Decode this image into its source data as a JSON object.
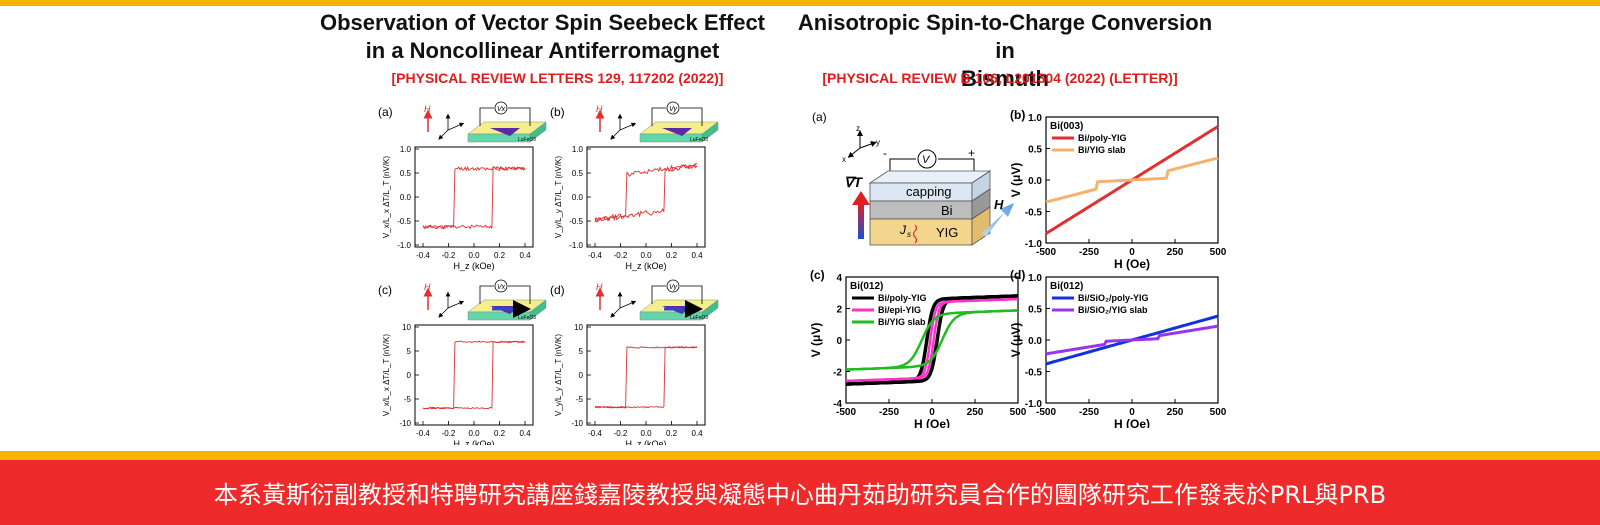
{
  "left": {
    "title_line1": "Observation of Vector Spin Seebeck Effect",
    "title_line2": "in a Noncollinear Antiferromagnet",
    "ref": "[PHYSICAL REVIEW LETTERS 129, 117202 (2022)]",
    "panels": [
      {
        "label": "(a)",
        "ylabel": "V_x/L_x ΔT/L_T (nV/K)",
        "xlabel": "H_z (kOe)",
        "yticks": [
          "1.0",
          "0.5",
          "0.0",
          "-0.5",
          "-1.0"
        ],
        "xticks": [
          "-0.4",
          "-0.2",
          "0.0",
          "0.2",
          "0.4"
        ],
        "voltage": "Vx"
      },
      {
        "label": "(b)",
        "ylabel": "V_y/L_y ΔT/L_T (nV/K)",
        "xlabel": "H_z (kOe)",
        "yticks": [
          "1.0",
          "0.5",
          "0.0",
          "-0.5",
          "-1.0"
        ],
        "xticks": [
          "-0.4",
          "-0.2",
          "0.0",
          "0.2",
          "0.4"
        ],
        "voltage": "Vy"
      },
      {
        "label": "(c)",
        "ylabel": "V_x/L_x ΔT/L_T (nV/K)",
        "xlabel": "H_z (kOe)",
        "yticks": [
          "10",
          "5",
          "0",
          "-5",
          "-10"
        ],
        "xticks": [
          "-0.4",
          "-0.2",
          "0.0",
          "0.2",
          "0.4"
        ],
        "voltage": "Vx"
      },
      {
        "label": "(d)",
        "ylabel": "V_y/L_y ΔT/L_T (nV/K)",
        "xlabel": "H_z (kOe)",
        "yticks": [
          "10",
          "5",
          "0",
          "-5",
          "-10"
        ],
        "xticks": [
          "-0.4",
          "-0.2",
          "0.0",
          "0.2",
          "0.4"
        ],
        "voltage": "Vy"
      }
    ],
    "sample": "LuFeO3",
    "h_label": "H"
  },
  "right": {
    "title_line1": "Anisotropic Spin-to-Charge Conversion in",
    "title_line2": "Bismuth",
    "ref": "[PHYSICAL REVIEW B 106, L201304 (2022) (LETTER)]",
    "schematic": {
      "label": "(a)",
      "capping": "capping",
      "bi": "Bi",
      "yig": "YIG",
      "js": "J",
      "grad": "∇T",
      "h": "H",
      "v": "V",
      "minus": "-",
      "plus": "+"
    },
    "panel_b": {
      "label": "(b)",
      "title": "Bi(003)",
      "legend": [
        "Bi/poly-YIG",
        "Bi/YIG slab"
      ],
      "ylabel": "V (μV)",
      "xlabel": "H (Oe)",
      "yticks": [
        "1.0",
        "0.5",
        "0.0",
        "-0.5",
        "-1.0"
      ],
      "xticks": [
        "-500",
        "-250",
        "0",
        "250",
        "500"
      ]
    },
    "panel_c": {
      "label": "(c)",
      "title": "Bi(012)",
      "legend": [
        "Bi/poly-YIG",
        "Bi/epi-YIG",
        "Bi/YIG slab"
      ],
      "ylabel": "V (μV)",
      "xlabel": "H (Oe)",
      "yticks": [
        "4",
        "2",
        "0",
        "-2",
        "-4"
      ],
      "xticks": [
        "-500",
        "-250",
        "0",
        "250",
        "500"
      ]
    },
    "panel_d": {
      "label": "(d)",
      "title": "Bi(012)",
      "legend": [
        "Bi/SiO₂/poly-YIG",
        "Bi/SiO₂/YIG slab"
      ],
      "ylabel": "V (μV)",
      "xlabel": "H (Oe)",
      "yticks": [
        "1.0",
        "0.5",
        "0.0",
        "-0.5",
        "-1.0"
      ],
      "xticks": [
        "-500",
        "-250",
        "0",
        "250",
        "500"
      ]
    }
  },
  "banner": "本系黃斯衍副教授和特聘研究講座錢嘉陵教授與凝態中心曲丹茹助研究員合作的團隊研究工作發表於PRL與PRB",
  "colors": {
    "accent_yellow": "#F7B500",
    "banner_red": "#EE2A2A",
    "ref_red": "#E01B1B",
    "curve_red": "#E03030",
    "orange": "#F6B26B",
    "black": "#000000",
    "magenta": "#FF33CC",
    "green": "#22BB22",
    "blue": "#1133DD",
    "purple": "#9933EE"
  }
}
